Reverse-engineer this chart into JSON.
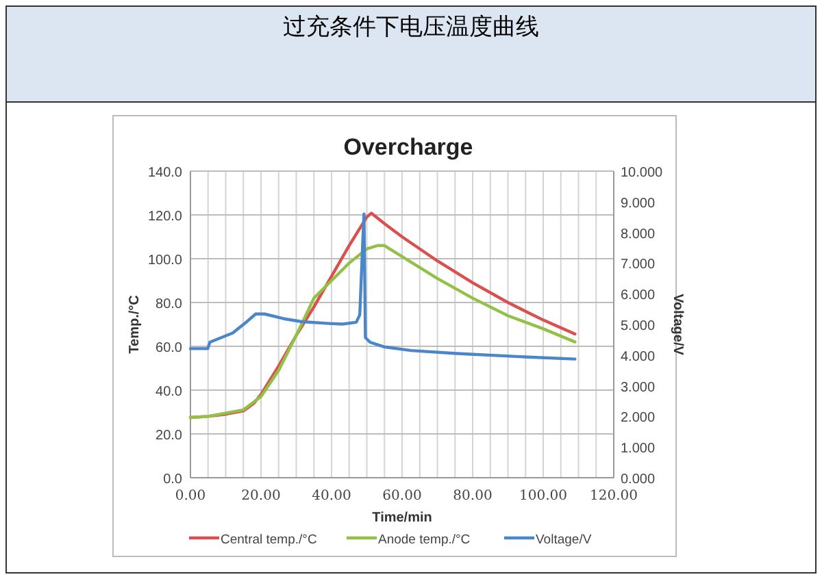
{
  "chart_data": {
    "type": "line",
    "title": "过充条件下电压温度曲线",
    "subtitle": "Overcharge",
    "xlabel": "Time/min",
    "ylabel": "Temp./°C",
    "y2label": "Voltage/V",
    "xlim": [
      0,
      120
    ],
    "xticks": [
      {
        "value": 0,
        "label": "0.00"
      },
      {
        "value": 5,
        "label": null
      },
      {
        "value": 10,
        "label": null
      },
      {
        "value": 15,
        "label": null
      },
      {
        "value": 20,
        "label": "20.00"
      },
      {
        "value": 25,
        "label": null
      },
      {
        "value": 30,
        "label": null
      },
      {
        "value": 35,
        "label": null
      },
      {
        "value": 40,
        "label": "40.00"
      },
      {
        "value": 45,
        "label": null
      },
      {
        "value": 50,
        "label": null
      },
      {
        "value": 55,
        "label": null
      },
      {
        "value": 60,
        "label": "60.00"
      },
      {
        "value": 65,
        "label": null
      },
      {
        "value": 70,
        "label": null
      },
      {
        "value": 75,
        "label": null
      },
      {
        "value": 80,
        "label": "80.00"
      },
      {
        "value": 85,
        "label": null
      },
      {
        "value": 90,
        "label": null
      },
      {
        "value": 95,
        "label": null
      },
      {
        "value": 100,
        "label": "100.00"
      },
      {
        "value": 105,
        "label": null
      },
      {
        "value": 110,
        "label": null
      },
      {
        "value": 115,
        "label": null
      },
      {
        "value": 120,
        "label": "120.00"
      }
    ],
    "ylim": [
      0,
      140
    ],
    "yticks": [
      {
        "value": 0,
        "label": "0.0"
      },
      {
        "value": 20,
        "label": "20.0"
      },
      {
        "value": 40,
        "label": "40.0"
      },
      {
        "value": 60,
        "label": "60.0"
      },
      {
        "value": 80,
        "label": "80.0"
      },
      {
        "value": 100,
        "label": "100.0"
      },
      {
        "value": 120,
        "label": "120.0"
      },
      {
        "value": 140,
        "label": "140.0"
      }
    ],
    "y2lim": [
      0,
      10
    ],
    "y2ticks": [
      {
        "value": 0,
        "label": "0.000"
      },
      {
        "value": 1,
        "label": "1.000"
      },
      {
        "value": 2,
        "label": "2.000"
      },
      {
        "value": 3,
        "label": "3.000"
      },
      {
        "value": 4,
        "label": "4.000"
      },
      {
        "value": 5,
        "label": "5.000"
      },
      {
        "value": 6,
        "label": "6.000"
      },
      {
        "value": 7,
        "label": "7.000"
      },
      {
        "value": 8,
        "label": "8.000"
      },
      {
        "value": 9,
        "label": "9.000"
      },
      {
        "value": 10,
        "label": "10.000"
      }
    ],
    "grid": true,
    "legend": "bottom",
    "series": [
      {
        "name": "Central temp./°C",
        "color": "#d9504e",
        "x": [
          0,
          5,
          10,
          15,
          18,
          20,
          25,
          30,
          35,
          40,
          45,
          50,
          51.3,
          55,
          60,
          70,
          80,
          90,
          100,
          109
        ],
        "values": [
          27.5,
          28,
          29,
          30.5,
          34,
          38,
          51,
          65,
          78,
          92,
          106,
          119,
          120.8,
          116,
          110,
          99,
          89,
          80,
          72,
          65.6
        ]
      },
      {
        "name": "Anode temp./°C",
        "color": "#93c047",
        "x": [
          0,
          5,
          10,
          15,
          20,
          25,
          30,
          35,
          40,
          45,
          50,
          53,
          55,
          60,
          70,
          80,
          90,
          100,
          109
        ],
        "values": [
          27.5,
          28,
          29.5,
          31,
          37,
          49,
          65,
          82,
          90,
          98,
          104.5,
          106,
          106,
          101,
          91,
          82,
          74,
          68,
          62
        ]
      },
      {
        "name": "Voltage/V",
        "color": "#4a86c8",
        "axis": "y2",
        "x": [
          0,
          4.9,
          5.5,
          12,
          16,
          18.5,
          21,
          26.3,
          31.5,
          39.2,
          43,
          47,
          48,
          48.9,
          49.2,
          49.6,
          50.9,
          54.8,
          62.5,
          75.4,
          94.8,
          109
        ],
        "values": [
          4.21,
          4.21,
          4.42,
          4.72,
          5.09,
          5.34,
          5.34,
          5.19,
          5.09,
          5.03,
          5.01,
          5.07,
          5.31,
          7.84,
          8.6,
          4.57,
          4.42,
          4.27,
          4.15,
          4.05,
          3.94,
          3.87
        ]
      }
    ]
  }
}
